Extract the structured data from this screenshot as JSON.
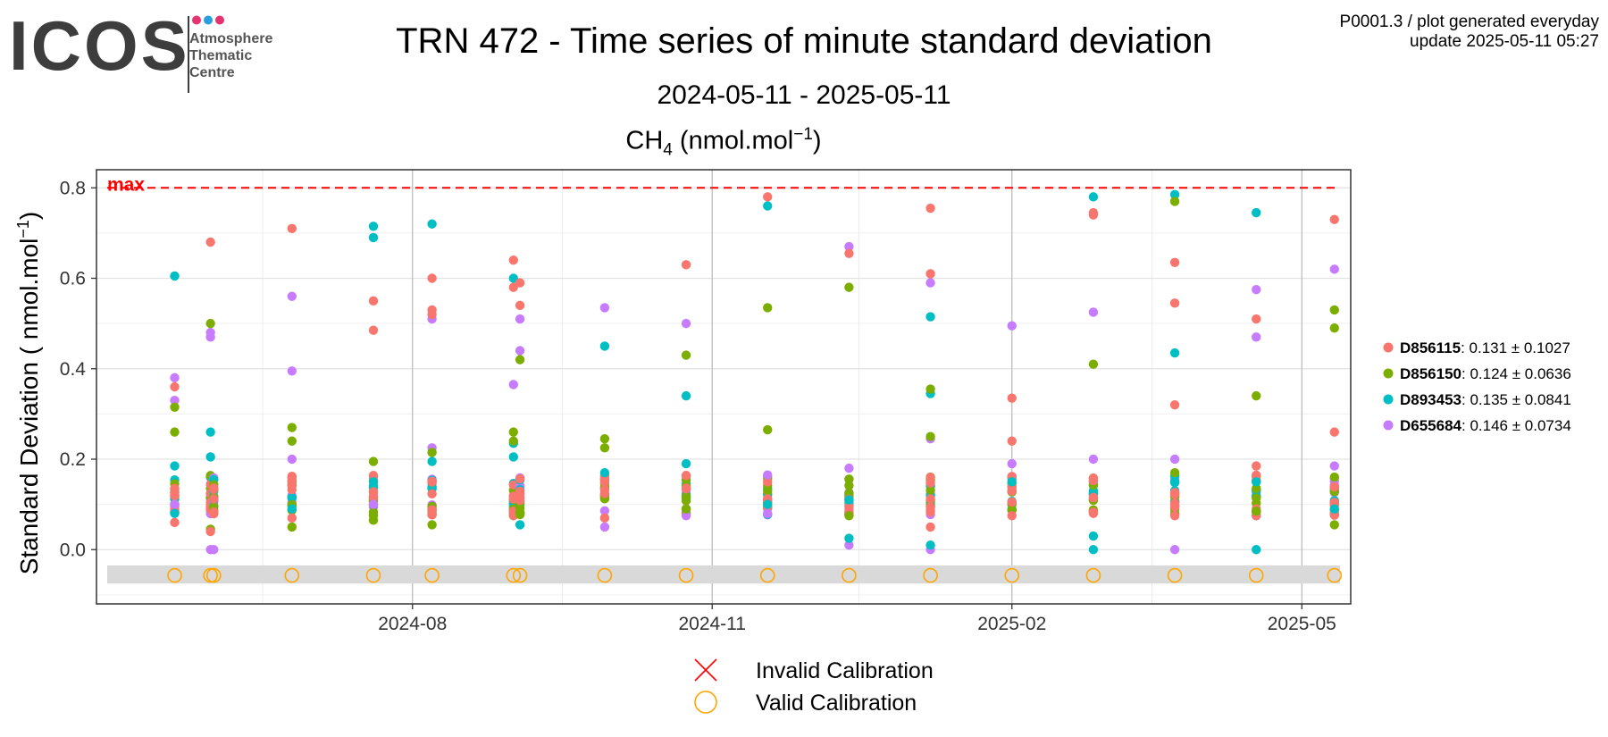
{
  "logo": {
    "word": "ICOS",
    "line1": "Atmosphere",
    "line2": "Thematic",
    "line3": "Centre",
    "dot_colors": [
      "#e6336f",
      "#2a9fe0",
      "#e6336f"
    ]
  },
  "header": {
    "title": "TRN 472 - Time series of minute standard deviation",
    "subtitle": "2024-05-11 - 2025-05-11",
    "chart_title_main": "CH",
    "chart_title_sub": "4",
    "chart_title_unit": " (nmol.mol",
    "chart_title_sup": "−1",
    "chart_title_end": ")"
  },
  "meta": {
    "line1": "P0001.3 / plot generated everyday",
    "line2": "update  2025-05-11 05:27"
  },
  "chart_data": {
    "type": "scatter",
    "ylabel_main": "Standard Deviation ( nmol.mol",
    "ylabel_sup": "−1",
    "ylabel_end": ")",
    "x_range": [
      "2024-04-26",
      "2025-05-16"
    ],
    "ylim": [
      -0.12,
      0.84
    ],
    "y_ticks": [
      0.0,
      0.2,
      0.4,
      0.6,
      0.8
    ],
    "y_tick_labels": [
      "0.0",
      "0.2",
      "0.4",
      "0.6",
      "0.8"
    ],
    "x_ticks": [
      "2024-08-01",
      "2024-11-01",
      "2025-02-01",
      "2025-05-01"
    ],
    "x_tick_labels": [
      "2024-08",
      "2024-11",
      "2025-02",
      "2025-05"
    ],
    "grid": true,
    "max_line": {
      "y": 0.8,
      "label": "max",
      "color": "#ff0000"
    },
    "calibration_band": {
      "y_from": -0.075,
      "y_to": -0.035
    },
    "calibration_marker_y": -0.057,
    "sessions": [
      "2024-05-20",
      "2024-05-31",
      "2024-06-01",
      "2024-06-25",
      "2024-07-20",
      "2024-08-07",
      "2024-09-01",
      "2024-09-03",
      "2024-09-29",
      "2024-10-24",
      "2024-11-18",
      "2024-12-13",
      "2025-01-07",
      "2025-02-01",
      "2025-02-26",
      "2025-03-23",
      "2025-04-17",
      "2025-05-11"
    ],
    "series": [
      {
        "name": "D856115",
        "color": "#f8766d",
        "stats": ": 0.131 ± 0.1027",
        "points": [
          [
            "2024-05-20",
            0.36
          ],
          [
            "2024-05-20",
            0.06
          ],
          [
            "2024-05-31",
            0.68
          ],
          [
            "2024-05-31",
            0.04
          ],
          [
            "2024-06-25",
            0.71
          ],
          [
            "2024-06-25",
            0.07
          ],
          [
            "2024-07-20",
            0.55
          ],
          [
            "2024-07-20",
            0.485
          ],
          [
            "2024-08-07",
            0.6
          ],
          [
            "2024-08-07",
            0.53
          ],
          [
            "2024-08-07",
            0.52
          ],
          [
            "2024-09-01",
            0.64
          ],
          [
            "2024-09-01",
            0.58
          ],
          [
            "2024-09-03",
            0.59
          ],
          [
            "2024-09-03",
            0.54
          ],
          [
            "2024-09-29",
            0.07
          ],
          [
            "2024-10-24",
            0.63
          ],
          [
            "2024-11-18",
            0.78
          ],
          [
            "2024-12-13",
            0.655
          ],
          [
            "2025-01-07",
            0.755
          ],
          [
            "2025-01-07",
            0.61
          ],
          [
            "2025-01-07",
            0.05
          ],
          [
            "2025-02-01",
            0.335
          ],
          [
            "2025-02-01",
            0.24
          ],
          [
            "2025-02-01",
            0.075
          ],
          [
            "2025-02-26",
            0.745
          ],
          [
            "2025-02-26",
            0.74
          ],
          [
            "2025-02-26",
            0.08
          ],
          [
            "2025-03-23",
            0.635
          ],
          [
            "2025-03-23",
            0.545
          ],
          [
            "2025-03-23",
            0.32
          ],
          [
            "2025-03-23",
            0.075
          ],
          [
            "2025-04-17",
            0.51
          ],
          [
            "2025-04-17",
            0.185
          ],
          [
            "2025-05-11",
            0.73
          ],
          [
            "2025-05-11",
            0.26
          ]
        ]
      },
      {
        "name": "D856150",
        "color": "#7cae00",
        "stats": ": 0.124 ± 0.0636",
        "points": [
          [
            "2024-05-20",
            0.315
          ],
          [
            "2024-05-20",
            0.26
          ],
          [
            "2024-05-31",
            0.5
          ],
          [
            "2024-05-31",
            0.045
          ],
          [
            "2024-06-25",
            0.27
          ],
          [
            "2024-06-25",
            0.24
          ],
          [
            "2024-06-25",
            0.05
          ],
          [
            "2024-07-20",
            0.195
          ],
          [
            "2024-07-20",
            0.065
          ],
          [
            "2024-08-07",
            0.215
          ],
          [
            "2024-08-07",
            0.055
          ],
          [
            "2024-09-01",
            0.26
          ],
          [
            "2024-09-01",
            0.24
          ],
          [
            "2024-09-03",
            0.42
          ],
          [
            "2024-09-03",
            0.08
          ],
          [
            "2024-09-29",
            0.245
          ],
          [
            "2024-09-29",
            0.225
          ],
          [
            "2024-10-24",
            0.43
          ],
          [
            "2024-10-24",
            0.09
          ],
          [
            "2024-11-18",
            0.535
          ],
          [
            "2024-11-18",
            0.265
          ],
          [
            "2024-12-13",
            0.58
          ],
          [
            "2024-12-13",
            0.075
          ],
          [
            "2025-01-07",
            0.355
          ],
          [
            "2025-01-07",
            0.25
          ],
          [
            "2025-02-26",
            0.41
          ],
          [
            "2025-03-23",
            0.77
          ],
          [
            "2025-03-23",
            0.17
          ],
          [
            "2025-04-17",
            0.34
          ],
          [
            "2025-04-17",
            0.085
          ],
          [
            "2025-05-11",
            0.53
          ],
          [
            "2025-05-11",
            0.49
          ],
          [
            "2025-05-11",
            0.055
          ]
        ]
      },
      {
        "name": "D893453",
        "color": "#00bfc4",
        "stats": ": 0.135 ± 0.0841",
        "points": [
          [
            "2024-05-20",
            0.605
          ],
          [
            "2024-05-20",
            0.185
          ],
          [
            "2024-05-20",
            0.08
          ],
          [
            "2024-05-31",
            0.26
          ],
          [
            "2024-05-31",
            0.205
          ],
          [
            "2024-06-25",
            0.09
          ],
          [
            "2024-07-20",
            0.715
          ],
          [
            "2024-07-20",
            0.69
          ],
          [
            "2024-07-20",
            0.15
          ],
          [
            "2024-08-07",
            0.72
          ],
          [
            "2024-08-07",
            0.195
          ],
          [
            "2024-09-01",
            0.6
          ],
          [
            "2024-09-01",
            0.235
          ],
          [
            "2024-09-01",
            0.205
          ],
          [
            "2024-09-03",
            0.055
          ],
          [
            "2024-09-29",
            0.45
          ],
          [
            "2024-09-29",
            0.17
          ],
          [
            "2024-10-24",
            0.34
          ],
          [
            "2024-10-24",
            0.19
          ],
          [
            "2024-11-18",
            0.76
          ],
          [
            "2024-11-18",
            0.1
          ],
          [
            "2024-12-13",
            0.025
          ],
          [
            "2024-12-13",
            0.11
          ],
          [
            "2025-01-07",
            0.515
          ],
          [
            "2025-01-07",
            0.345
          ],
          [
            "2025-01-07",
            0.01
          ],
          [
            "2025-02-01",
            0.15
          ],
          [
            "2025-02-26",
            0.78
          ],
          [
            "2025-02-26",
            0.03
          ],
          [
            "2025-02-26",
            0.0
          ],
          [
            "2025-03-23",
            0.785
          ],
          [
            "2025-03-23",
            0.435
          ],
          [
            "2025-03-23",
            0.15
          ],
          [
            "2025-04-17",
            0.745
          ],
          [
            "2025-04-17",
            0.15
          ],
          [
            "2025-04-17",
            0.0
          ],
          [
            "2025-05-11",
            0.09
          ]
        ]
      },
      {
        "name": "D655684",
        "color": "#c77cff",
        "stats": ": 0.146 ± 0.0734",
        "points": [
          [
            "2024-05-20",
            0.38
          ],
          [
            "2024-05-20",
            0.33
          ],
          [
            "2024-05-20",
            0.1
          ],
          [
            "2024-05-31",
            0.48
          ],
          [
            "2024-05-31",
            0.47
          ],
          [
            "2024-05-31",
            0.0
          ],
          [
            "2024-06-01",
            0.0
          ],
          [
            "2024-06-25",
            0.56
          ],
          [
            "2024-06-25",
            0.395
          ],
          [
            "2024-06-25",
            0.2
          ],
          [
            "2024-07-20",
            0.1
          ],
          [
            "2024-08-07",
            0.51
          ],
          [
            "2024-08-07",
            0.225
          ],
          [
            "2024-09-01",
            0.365
          ],
          [
            "2024-09-03",
            0.51
          ],
          [
            "2024-09-03",
            0.44
          ],
          [
            "2024-09-29",
            0.535
          ],
          [
            "2024-09-29",
            0.05
          ],
          [
            "2024-10-24",
            0.5
          ],
          [
            "2024-10-24",
            0.075
          ],
          [
            "2024-11-18",
            0.165
          ],
          [
            "2024-11-18",
            0.08
          ],
          [
            "2024-12-13",
            0.67
          ],
          [
            "2024-12-13",
            0.18
          ],
          [
            "2024-12-13",
            0.01
          ],
          [
            "2025-01-07",
            0.59
          ],
          [
            "2025-01-07",
            0.245
          ],
          [
            "2025-01-07",
            0.0
          ],
          [
            "2025-02-01",
            0.495
          ],
          [
            "2025-02-01",
            0.19
          ],
          [
            "2025-02-26",
            0.525
          ],
          [
            "2025-02-26",
            0.2
          ],
          [
            "2025-03-23",
            0.2
          ],
          [
            "2025-03-23",
            0.0
          ],
          [
            "2025-04-17",
            0.575
          ],
          [
            "2025-04-17",
            0.47
          ],
          [
            "2025-05-11",
            0.62
          ],
          [
            "2025-05-11",
            0.185
          ]
        ]
      }
    ],
    "calibration_legend": [
      {
        "label": "Invalid Calibration",
        "color": "#ff0000",
        "symbol": "cross"
      },
      {
        "label": "Valid Calibration",
        "color": "#ffa500",
        "symbol": "circle"
      }
    ]
  }
}
